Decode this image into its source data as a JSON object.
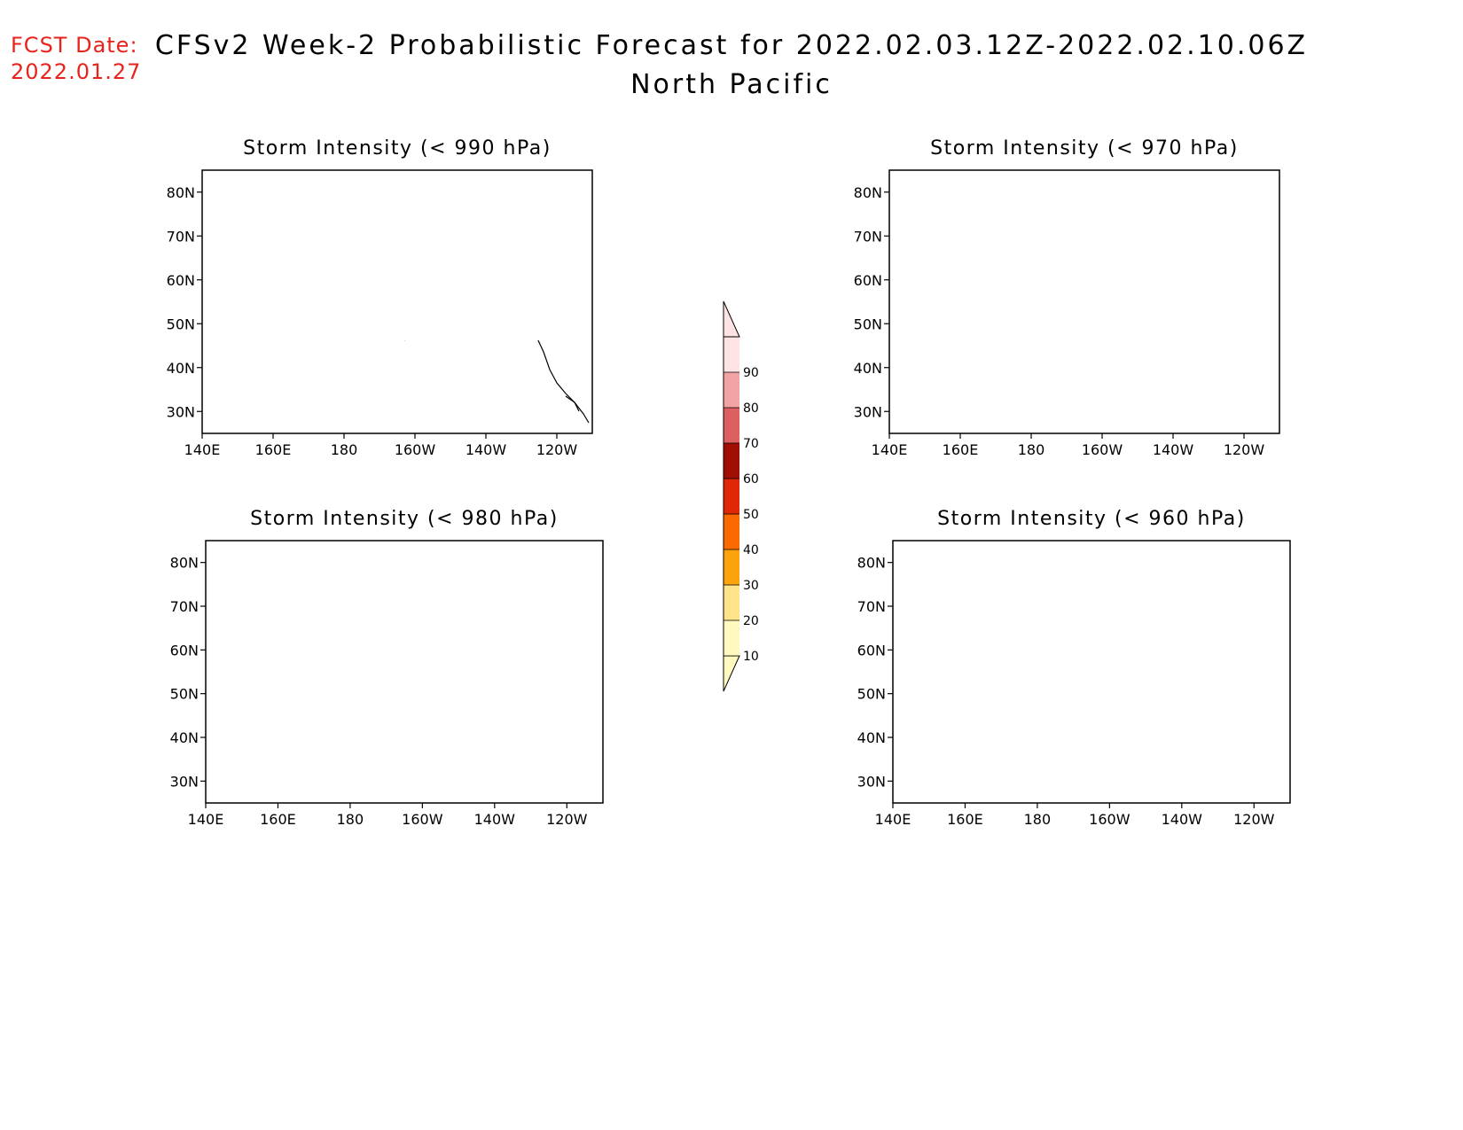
{
  "header": {
    "fcst_label": "FCST Date:",
    "fcst_date": "2022.01.27",
    "title": "CFSv2 Week-2 Probabilistic Forecast for 2022.02.03.12Z-2022.02.10.06Z",
    "subtitle": "North Pacific"
  },
  "panels": [
    {
      "id": "p990",
      "title": "Storm Intensity (< 990 hPa)"
    },
    {
      "id": "p970",
      "title": "Storm Intensity (< 970 hPa)"
    },
    {
      "id": "p980",
      "title": "Storm Intensity (< 980 hPa)"
    },
    {
      "id": "p960",
      "title": "Storm Intensity (< 960 hPa)"
    }
  ],
  "axes": {
    "lat_labels": [
      "30N",
      "40N",
      "50N",
      "60N",
      "70N",
      "80N"
    ],
    "lon_labels": [
      "140E",
      "160E",
      "180",
      "160W",
      "140W",
      "120W"
    ]
  },
  "colorbar": {
    "levels": [
      "10",
      "20",
      "30",
      "40",
      "50",
      "60",
      "70",
      "80",
      "90"
    ],
    "colors": [
      "#fff9c0",
      "#fde48a",
      "#fca20c",
      "#fb6a00",
      "#e02808",
      "#a10e04",
      "#dd6060",
      "#f2a3a3",
      "#fde3e3"
    ]
  }
}
